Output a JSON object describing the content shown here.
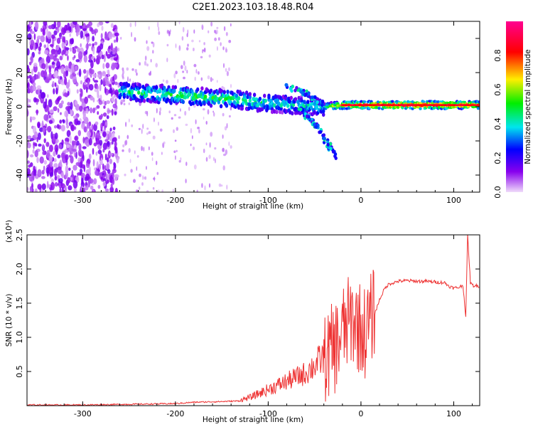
{
  "title": "C2E1.2023.103.18.48.R04",
  "chart_data": [
    {
      "type": "heatmap",
      "xlabel": "Height of straight line (km)",
      "ylabel": "Frequency (Hz)",
      "xlim": [
        -360,
        128
      ],
      "ylim": [
        -50,
        50
      ],
      "xticks": [
        -300,
        -200,
        -100,
        0,
        100
      ],
      "yticks": [
        -40,
        -20,
        0,
        20,
        40
      ],
      "colorbar": {
        "label": "Normalized spectral amplitude",
        "range": [
          0.0,
          1.0
        ],
        "ticks": [
          0.0,
          0.2,
          0.4,
          0.6,
          0.8
        ],
        "colormap": [
          "#e6c8f5",
          "#8800ee",
          "#0000ff",
          "#00e5ee",
          "#00ee00",
          "#ffee00",
          "#ff0000",
          "#ff0090"
        ]
      },
      "features": {
        "noise_region": [
          -360,
          -262
        ],
        "diffuse_region": [
          -262,
          -140
        ],
        "band": [
          {
            "x": -260,
            "y": 9,
            "amp": 0.45
          },
          {
            "x": -200,
            "y": 7,
            "amp": 0.5
          },
          {
            "x": -150,
            "y": 5,
            "amp": 0.5
          },
          {
            "x": -100,
            "y": 2,
            "amp": 0.45
          },
          {
            "x": -70,
            "y": 1,
            "amp": 0.4
          },
          {
            "x": -40,
            "y": 0,
            "amp": 0.45
          },
          {
            "x": -20,
            "y": 1,
            "amp": 0.75
          },
          {
            "x": 0,
            "y": 1,
            "amp": 0.85
          },
          {
            "x": 50,
            "y": 1,
            "amp": 0.9
          },
          {
            "x": 100,
            "y": 1,
            "amp": 0.85
          },
          {
            "x": 128,
            "y": 1,
            "amp": 0.8
          }
        ],
        "branch_up": [
          {
            "x": -80,
            "y": 12
          },
          {
            "x": -60,
            "y": 8
          },
          {
            "x": -40,
            "y": 1
          }
        ],
        "branch_down": [
          {
            "x": -65,
            "y": -2
          },
          {
            "x": -50,
            "y": -10
          },
          {
            "x": -35,
            "y": -22
          },
          {
            "x": -28,
            "y": -30
          }
        ]
      }
    },
    {
      "type": "line",
      "xlabel": "Height of straight line (km)",
      "ylabel": "SNR (10 * v/v)",
      "y_multiplier": "(x10⁴)",
      "xlim": [
        -360,
        128
      ],
      "ylim": [
        0,
        2.5
      ],
      "xticks": [
        -300,
        -200,
        -100,
        0,
        100
      ],
      "yticks": [
        0.5,
        1.0,
        1.5,
        2.0,
        2.5
      ],
      "color": "#ee3333",
      "series": [
        {
          "x": [
            -360,
            -300,
            -250,
            -200,
            -180,
            -150,
            -130,
            -120,
            -110,
            -100,
            -90,
            -80,
            -70,
            -60,
            -50,
            -40,
            -30,
            -25,
            -20,
            -15,
            -10,
            -5,
            0,
            5,
            10,
            15,
            20,
            25,
            30,
            40,
            50,
            60,
            70,
            80,
            90,
            95,
            100,
            105,
            110,
            113,
            115,
            118,
            120,
            128
          ],
          "y": [
            0.01,
            0.01,
            0.02,
            0.03,
            0.05,
            0.06,
            0.07,
            0.1,
            0.15,
            0.2,
            0.25,
            0.3,
            0.35,
            0.4,
            0.5,
            0.6,
            0.75,
            0.85,
            1.0,
            1.1,
            1.2,
            1.15,
            1.05,
            1.0,
            1.15,
            1.35,
            1.55,
            1.7,
            1.78,
            1.82,
            1.83,
            1.82,
            1.82,
            1.81,
            1.8,
            1.75,
            1.72,
            1.73,
            1.76,
            1.3,
            2.5,
            1.8,
            1.76,
            1.75
          ]
        }
      ]
    }
  ]
}
